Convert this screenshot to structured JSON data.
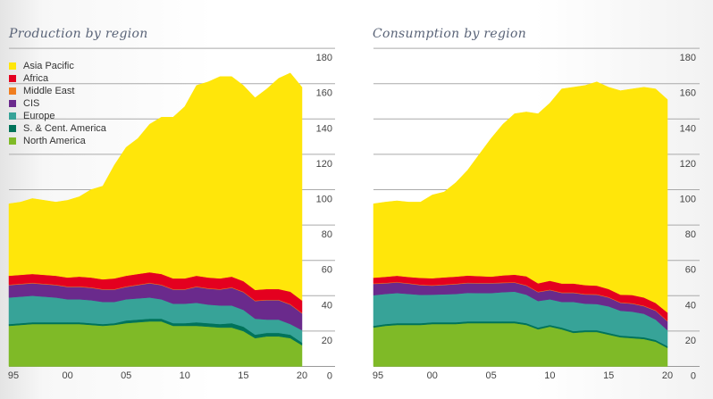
{
  "chart_data": [
    {
      "type": "area",
      "stacked": true,
      "title": "Production by region",
      "x": [
        1995,
        1996,
        1997,
        1998,
        1999,
        2000,
        2001,
        2002,
        2003,
        2004,
        2005,
        2006,
        2007,
        2008,
        2009,
        2010,
        2011,
        2012,
        2013,
        2014,
        2015,
        2016,
        2017,
        2018,
        2019,
        2020
      ],
      "xtick_labels": [
        "95",
        "00",
        "05",
        "10",
        "15",
        "20"
      ],
      "xticks": [
        1995,
        2000,
        2005,
        2010,
        2015,
        2020
      ],
      "ylim": [
        0,
        180
      ],
      "yticks": [
        0,
        20,
        40,
        60,
        80,
        100,
        120,
        140,
        160,
        180
      ],
      "ytick_labels": [
        "0",
        "20",
        "40",
        "60",
        "80",
        "100",
        "120",
        "140",
        "160",
        "180"
      ],
      "y_axis_side": "right",
      "grid": true,
      "legend_placement": "top-left",
      "series": [
        {
          "name": "North America",
          "color": "#7fba27",
          "values": [
            23,
            23.5,
            24,
            24,
            24,
            24,
            24,
            23.5,
            23,
            23.5,
            24.5,
            25,
            25.5,
            25.5,
            23,
            23,
            23,
            22.5,
            22,
            22,
            20,
            16,
            17,
            17,
            16,
            12
          ]
        },
        {
          "name": "S. & Cent. America",
          "color": "#00735a",
          "values": [
            1,
            1,
            1,
            1,
            1,
            1,
            1,
            1,
            1,
            1,
            1.5,
            1.5,
            1.5,
            1.5,
            1.5,
            1.5,
            2,
            2,
            2,
            2.5,
            2.5,
            2,
            2,
            2,
            2,
            1.5
          ]
        },
        {
          "name": "Europe",
          "color": "#37a398",
          "values": [
            15,
            15,
            15,
            14.5,
            14,
            13,
            13,
            13,
            12.5,
            12,
            12,
            12,
            12,
            11,
            11,
            11,
            11,
            10.5,
            10.5,
            10,
            9.5,
            9,
            7.5,
            7.5,
            6,
            7
          ]
        },
        {
          "name": "CIS",
          "color": "#6a2a8c",
          "values": [
            7,
            7,
            7,
            7,
            7,
            7,
            7,
            7,
            7,
            7,
            7,
            7.5,
            8,
            8,
            8,
            8,
            9,
            9,
            9,
            10,
            10,
            10,
            11,
            11,
            11,
            9.5
          ]
        },
        {
          "name": "Middle East",
          "color": "#f07d1e",
          "values": [
            0.3,
            0.3,
            0.3,
            0.3,
            0.3,
            0.3,
            0.3,
            0.3,
            0.3,
            0.3,
            0.3,
            0.3,
            0.3,
            0.3,
            0.3,
            0.3,
            0.3,
            0.3,
            0.3,
            0.3,
            0.3,
            0.3,
            0.3,
            0.3,
            0.3,
            0.3
          ]
        },
        {
          "name": "Africa",
          "color": "#e4001f",
          "values": [
            5,
            5,
            5,
            5,
            5,
            5,
            5.5,
            5.5,
            5.5,
            6,
            6,
            6,
            6,
            6,
            6,
            6,
            6,
            6,
            6,
            6,
            6,
            6,
            6,
            6,
            7,
            7
          ]
        },
        {
          "name": "Asia Pacific",
          "color": "#ffe60a",
          "values": [
            40.7,
            41.2,
            42.7,
            42.2,
            41.7,
            43.7,
            45.2,
            49.7,
            52.7,
            64.2,
            72.7,
            76.7,
            83.7,
            88.7,
            91.2,
            97.2,
            107.7,
            110.7,
            114.2,
            113.2,
            110.7,
            108.7,
            113.2,
            119.2,
            123.7,
            120.7
          ]
        }
      ]
    },
    {
      "type": "area",
      "stacked": true,
      "title": "Consumption by region",
      "x": [
        1995,
        1996,
        1997,
        1998,
        1999,
        2000,
        2001,
        2002,
        2003,
        2004,
        2005,
        2006,
        2007,
        2008,
        2009,
        2010,
        2011,
        2012,
        2013,
        2014,
        2015,
        2016,
        2017,
        2018,
        2019,
        2020
      ],
      "xtick_labels": [
        "95",
        "00",
        "05",
        "10",
        "15",
        "20"
      ],
      "xticks": [
        1995,
        2000,
        2005,
        2010,
        2015,
        2020
      ],
      "ylim": [
        0,
        180
      ],
      "yticks": [
        0,
        20,
        40,
        60,
        80,
        100,
        120,
        140,
        160,
        180
      ],
      "ytick_labels": [
        "0",
        "20",
        "40",
        "60",
        "80",
        "100",
        "120",
        "140",
        "160",
        "180"
      ],
      "y_axis_side": "right",
      "grid": true,
      "series": [
        {
          "name": "North America",
          "color": "#7fba27",
          "values": [
            22,
            23,
            23.5,
            23.5,
            23.5,
            24,
            24,
            24,
            24.5,
            24.5,
            24.5,
            24.5,
            24.5,
            23.5,
            21,
            22.5,
            21,
            19,
            19.5,
            19.5,
            18,
            16.5,
            16,
            15.5,
            14,
            10.5
          ]
        },
        {
          "name": "S. & Cent. America",
          "color": "#00735a",
          "values": [
            1,
            1,
            1,
            1,
            1,
            1,
            1,
            1,
            1,
            1,
            1,
            1,
            1,
            1,
            1,
            1,
            1,
            1,
            1,
            1,
            1,
            1,
            1,
            1,
            1,
            1
          ]
        },
        {
          "name": "Europe",
          "color": "#37a398",
          "values": [
            17.3,
            17,
            17,
            16.5,
            16,
            15.6,
            15.8,
            16,
            16.1,
            16,
            16,
            16.5,
            16.8,
            16.1,
            15,
            14.5,
            14.5,
            16.5,
            15,
            14.8,
            15,
            14,
            14,
            13.3,
            11.5,
            9
          ]
        },
        {
          "name": "CIS",
          "color": "#6a2a8c",
          "values": [
            6.4,
            6,
            6,
            5.8,
            5.5,
            5.1,
            5.3,
            5.5,
            5.5,
            5.5,
            5.5,
            5.2,
            5.1,
            5.1,
            5,
            5.2,
            5.1,
            5.1,
            5.2,
            5.3,
            5,
            4.5,
            4.5,
            4.3,
            5,
            5
          ]
        },
        {
          "name": "Middle East",
          "color": "#f07d1e",
          "values": [
            0.3,
            0.3,
            0.3,
            0.3,
            0.3,
            0.3,
            0.3,
            0.3,
            0.3,
            0.3,
            0.3,
            0.3,
            0.3,
            0.3,
            0.3,
            0.3,
            0.3,
            0.3,
            0.3,
            0.3,
            0.3,
            0.3,
            0.3,
            0.3,
            0.3,
            0.3
          ]
        },
        {
          "name": "Africa",
          "color": "#e4001f",
          "values": [
            3.2,
            3.4,
            3.5,
            3.5,
            3.8,
            3.9,
            4,
            4,
            4,
            3.8,
            3.5,
            4,
            4.2,
            5,
            4.7,
            5,
            5,
            5,
            5,
            4.8,
            4.5,
            4.3,
            4.6,
            4.6,
            4.1,
            4.7
          ]
        },
        {
          "name": "Asia Pacific",
          "color": "#ffe60a",
          "values": [
            41.8,
            42.3,
            42.4,
            42.4,
            42.9,
            47.1,
            48.3,
            53.2,
            59.6,
            68.9,
            78.2,
            85.5,
            91.1,
            93,
            96,
            100.5,
            110.1,
            111.1,
            113,
            115.3,
            114.2,
            115.4,
            116.6,
            119,
            121.1,
            120.5
          ]
        }
      ]
    }
  ],
  "legend": [
    {
      "name": "Asia Pacific",
      "color": "#ffe60a"
    },
    {
      "name": "Africa",
      "color": "#e4001f"
    },
    {
      "name": "Middle East",
      "color": "#f07d1e"
    },
    {
      "name": "CIS",
      "color": "#6a2a8c"
    },
    {
      "name": "Europe",
      "color": "#37a398"
    },
    {
      "name": "S. & Cent. America",
      "color": "#00735a"
    },
    {
      "name": "North America",
      "color": "#7fba27"
    }
  ]
}
